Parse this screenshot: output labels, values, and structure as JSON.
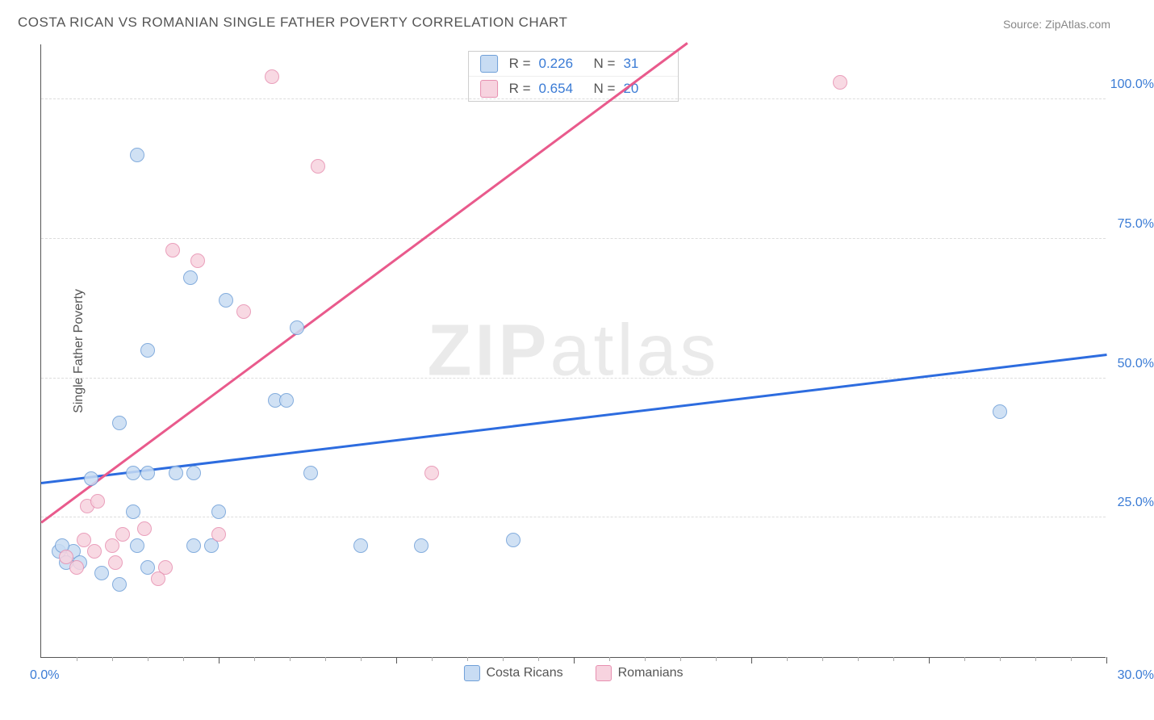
{
  "chart": {
    "type": "scatter",
    "title": "COSTA RICAN VS ROMANIAN SINGLE FATHER POVERTY CORRELATION CHART",
    "source": "Source: ZipAtlas.com",
    "yaxis_title": "Single Father Poverty",
    "watermark": "ZIPatlas",
    "xlim": [
      0,
      30
    ],
    "ylim": [
      0,
      110
    ],
    "xlabel_min": "0.0%",
    "xlabel_max": "30.0%",
    "ytick_positions": [
      25,
      50,
      75,
      100
    ],
    "ytick_labels": [
      "25.0%",
      "50.0%",
      "75.0%",
      "100.0%"
    ],
    "xtick_major_step": 5,
    "xtick_minor_step": 1,
    "background_color": "#ffffff",
    "grid_color": "#dddddd",
    "axis_color": "#555555",
    "label_color": "#3a7bd5",
    "marker_radius": 9,
    "marker_stroke_width": 1.5,
    "trendline_width": 2.5,
    "series": [
      {
        "name": "Costa Ricans",
        "fill_color": "#c8dcf3",
        "stroke_color": "#6f9fd8",
        "line_color": "#2d6cdf",
        "R": "0.226",
        "N": "31",
        "trend": {
          "x1": 0,
          "y1": 31,
          "x2": 30,
          "y2": 54
        },
        "points": [
          {
            "x": 2.7,
            "y": 90
          },
          {
            "x": 3.0,
            "y": 55
          },
          {
            "x": 4.2,
            "y": 68
          },
          {
            "x": 2.2,
            "y": 42
          },
          {
            "x": 5.2,
            "y": 64
          },
          {
            "x": 7.2,
            "y": 59
          },
          {
            "x": 6.6,
            "y": 46
          },
          {
            "x": 6.9,
            "y": 46
          },
          {
            "x": 1.4,
            "y": 32
          },
          {
            "x": 2.6,
            "y": 33
          },
          {
            "x": 3.0,
            "y": 33
          },
          {
            "x": 3.8,
            "y": 33
          },
          {
            "x": 4.3,
            "y": 33
          },
          {
            "x": 2.6,
            "y": 26
          },
          {
            "x": 5.0,
            "y": 26
          },
          {
            "x": 7.6,
            "y": 33
          },
          {
            "x": 0.5,
            "y": 19
          },
          {
            "x": 0.9,
            "y": 19
          },
          {
            "x": 0.7,
            "y": 17
          },
          {
            "x": 1.1,
            "y": 17
          },
          {
            "x": 0.6,
            "y": 20
          },
          {
            "x": 1.7,
            "y": 15
          },
          {
            "x": 2.2,
            "y": 13
          },
          {
            "x": 2.7,
            "y": 20
          },
          {
            "x": 3.0,
            "y": 16
          },
          {
            "x": 4.3,
            "y": 20
          },
          {
            "x": 4.8,
            "y": 20
          },
          {
            "x": 9.0,
            "y": 20
          },
          {
            "x": 10.7,
            "y": 20
          },
          {
            "x": 13.3,
            "y": 21
          },
          {
            "x": 27.0,
            "y": 44
          }
        ]
      },
      {
        "name": "Romanians",
        "fill_color": "#f7d3df",
        "stroke_color": "#e78fb0",
        "line_color": "#e95a8c",
        "R": "0.654",
        "N": "20",
        "trend": {
          "x1": 0,
          "y1": 24,
          "x2": 18.2,
          "y2": 110
        },
        "points": [
          {
            "x": 6.5,
            "y": 104
          },
          {
            "x": 22.5,
            "y": 103
          },
          {
            "x": 7.8,
            "y": 88
          },
          {
            "x": 3.7,
            "y": 73
          },
          {
            "x": 4.4,
            "y": 71
          },
          {
            "x": 5.7,
            "y": 62
          },
          {
            "x": 11.0,
            "y": 33
          },
          {
            "x": 1.3,
            "y": 27
          },
          {
            "x": 1.6,
            "y": 28
          },
          {
            "x": 2.3,
            "y": 22
          },
          {
            "x": 2.9,
            "y": 23
          },
          {
            "x": 2.0,
            "y": 20
          },
          {
            "x": 5.0,
            "y": 22
          },
          {
            "x": 2.1,
            "y": 17
          },
          {
            "x": 3.5,
            "y": 16
          },
          {
            "x": 3.3,
            "y": 14
          },
          {
            "x": 0.7,
            "y": 18
          },
          {
            "x": 1.0,
            "y": 16
          },
          {
            "x": 1.2,
            "y": 21
          },
          {
            "x": 1.5,
            "y": 19
          }
        ]
      }
    ],
    "legend_top": {
      "rows": [
        {
          "swatch_fill": "#c8dcf3",
          "swatch_stroke": "#6f9fd8",
          "r_label": "R =",
          "r_val": "0.226",
          "n_label": "N =",
          "n_val": "31"
        },
        {
          "swatch_fill": "#f7d3df",
          "swatch_stroke": "#e78fb0",
          "r_label": "R =",
          "r_val": "0.654",
          "n_label": "N =",
          "n_val": "20"
        }
      ]
    },
    "legend_bottom": [
      {
        "swatch_fill": "#c8dcf3",
        "swatch_stroke": "#6f9fd8",
        "label": "Costa Ricans"
      },
      {
        "swatch_fill": "#f7d3df",
        "swatch_stroke": "#e78fb0",
        "label": "Romanians"
      }
    ]
  }
}
